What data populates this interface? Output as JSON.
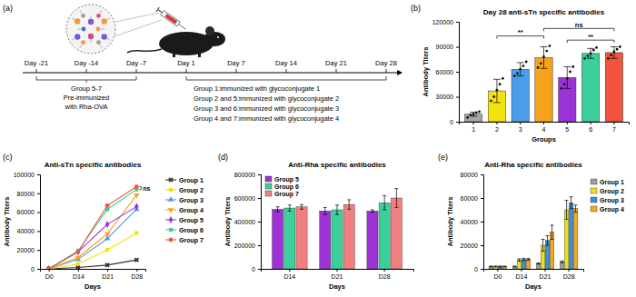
{
  "timeline": {
    "panel": "(a)",
    "days": [
      "Day -21",
      "Day -14",
      "Day -7",
      "Day 1",
      "Day 7",
      "Day 14",
      "Day 21",
      "Day 28"
    ],
    "pre_immunization": [
      "Group 5-7",
      "Pre-immunized",
      "with Rha-OVA"
    ],
    "immunization": [
      "Group 1:immunized with glycoconjugate 1",
      "Group 2 and 5:immunized with glycoconjugate 2",
      "Group 3 and 6:immunized with glycoconjugate 3",
      "Group 4 and 7:immunized with glycoconjugate 4"
    ]
  },
  "chart_data": [
    {
      "type": "bar",
      "panel": "(b)",
      "title": "Day 28 anti-sTn specific antibodies",
      "x_label": "Groups",
      "y_label": "Antibody Titers",
      "categories": [
        "1",
        "2",
        "3",
        "4",
        "5",
        "6",
        "7"
      ],
      "values": [
        9000,
        37000,
        63000,
        77000,
        53000,
        82000,
        83000
      ],
      "errors": [
        2500,
        14000,
        8000,
        13000,
        13000,
        6000,
        7000
      ],
      "points": [
        [
          5000,
          8000,
          9000,
          11000,
          12000
        ],
        [
          25000,
          30000,
          38000,
          45000,
          52000
        ],
        [
          55000,
          58000,
          63000,
          67000,
          72000
        ],
        [
          65000,
          70000,
          78000,
          85000,
          91000
        ],
        [
          40000,
          45000,
          52000,
          60000,
          66000
        ],
        [
          76000,
          79000,
          82000,
          86000,
          89000
        ],
        [
          76000,
          80000,
          84000,
          87000,
          90000
        ]
      ],
      "colors": [
        "#a6a6a6",
        "#f2e30c",
        "#4a9de8",
        "#f7a21b",
        "#9b33d6",
        "#3ccf9a",
        "#f0543c"
      ],
      "ylim": [
        0,
        120000
      ],
      "yticks": [
        0,
        30000,
        60000,
        90000,
        120000
      ],
      "annotations": [
        {
          "text": "**",
          "from": "2",
          "to": "4",
          "y": 103000
        },
        {
          "text": "ns",
          "from": "4",
          "to": "7",
          "y": 112000
        },
        {
          "text": "**",
          "from": "5",
          "to": "7",
          "y": 98000
        }
      ]
    },
    {
      "type": "line",
      "panel": "(c)",
      "title": "Anti-sTn specific antibodies",
      "x_label": "Days",
      "y_label": "Antibody Titers",
      "categories": [
        "D0",
        "D14",
        "D21",
        "D28"
      ],
      "ylim": [
        0,
        100000
      ],
      "yticks": [
        0,
        20000,
        40000,
        60000,
        80000,
        100000
      ],
      "legend": "right",
      "series": [
        {
          "name": "Group 1",
          "color": "#333333",
          "marker": "x",
          "values": [
            0,
            1500,
            4000,
            9500
          ]
        },
        {
          "name": "Group 2",
          "color": "#f2e30c",
          "marker": "circle",
          "values": [
            0,
            5000,
            20000,
            38000
          ]
        },
        {
          "name": "Group 3",
          "color": "#4a9de8",
          "marker": "triangle",
          "values": [
            0,
            10000,
            32000,
            63000
          ]
        },
        {
          "name": "Group 4",
          "color": "#f7a21b",
          "marker": "triangle-down",
          "values": [
            0,
            12000,
            37000,
            78000
          ]
        },
        {
          "name": "Group 5",
          "color": "#9b33d6",
          "marker": "diamond",
          "values": [
            0,
            18000,
            47000,
            66000
          ]
        },
        {
          "name": "Group 6",
          "color": "#3ccf9a",
          "marker": "square",
          "values": [
            0,
            19000,
            63000,
            84000
          ]
        },
        {
          "name": "Group 7",
          "color": "#f0543c",
          "marker": "circle",
          "values": [
            0,
            18000,
            67000,
            87000
          ]
        }
      ],
      "annotations": [
        {
          "text": "ns",
          "category": "D28",
          "from": "Group 6",
          "to": "Group 7"
        }
      ]
    },
    {
      "type": "bar",
      "panel": "(d)",
      "title": "Anti-Rha specific antibodies",
      "x_label": "Days",
      "y_label": "Antibody Titers",
      "categories": [
        "D14",
        "D21",
        "D28"
      ],
      "ylim": [
        0,
        800000
      ],
      "yticks": [
        0,
        200000,
        400000,
        600000,
        800000
      ],
      "legend": "upper left",
      "series": [
        {
          "name": "Group 5",
          "color": "#9b33d6",
          "values": [
            505000,
            490000,
            490000
          ],
          "errors": [
            20000,
            30000,
            10000
          ]
        },
        {
          "name": "Group 6",
          "color": "#3ccf9a",
          "values": [
            515000,
            500000,
            560000
          ],
          "errors": [
            25000,
            40000,
            60000
          ]
        },
        {
          "name": "Group 7",
          "color": "#f08080",
          "values": [
            525000,
            545000,
            600000
          ],
          "errors": [
            20000,
            40000,
            80000
          ]
        }
      ]
    },
    {
      "type": "bar",
      "panel": "(e)",
      "title": "Anti-Rha specific antibodies",
      "x_label": "Days",
      "y_label": "Antibody Titers",
      "categories": [
        "D0",
        "D14",
        "D21",
        "D28"
      ],
      "ylim": [
        0,
        80000
      ],
      "yticks": [
        0,
        20000,
        40000,
        60000,
        80000
      ],
      "legend": "right",
      "series": [
        {
          "name": "Group 1",
          "color": "#9e9e9e",
          "values": [
            2000,
            2000,
            4500,
            6000
          ],
          "errors": [
            300,
            300,
            500,
            800
          ]
        },
        {
          "name": "Group 2",
          "color": "#e8e020",
          "values": [
            2000,
            7500,
            20000,
            50000
          ],
          "errors": [
            400,
            1000,
            5000,
            8000
          ]
        },
        {
          "name": "Group 3",
          "color": "#3c8fd8",
          "values": [
            2000,
            8000,
            24000,
            56000
          ],
          "errors": [
            400,
            1000,
            4000,
            5000
          ]
        },
        {
          "name": "Group 4",
          "color": "#f5a623",
          "values": [
            2000,
            8000,
            31000,
            51000
          ],
          "errors": [
            300,
            800,
            6000,
            3000
          ]
        }
      ]
    }
  ]
}
